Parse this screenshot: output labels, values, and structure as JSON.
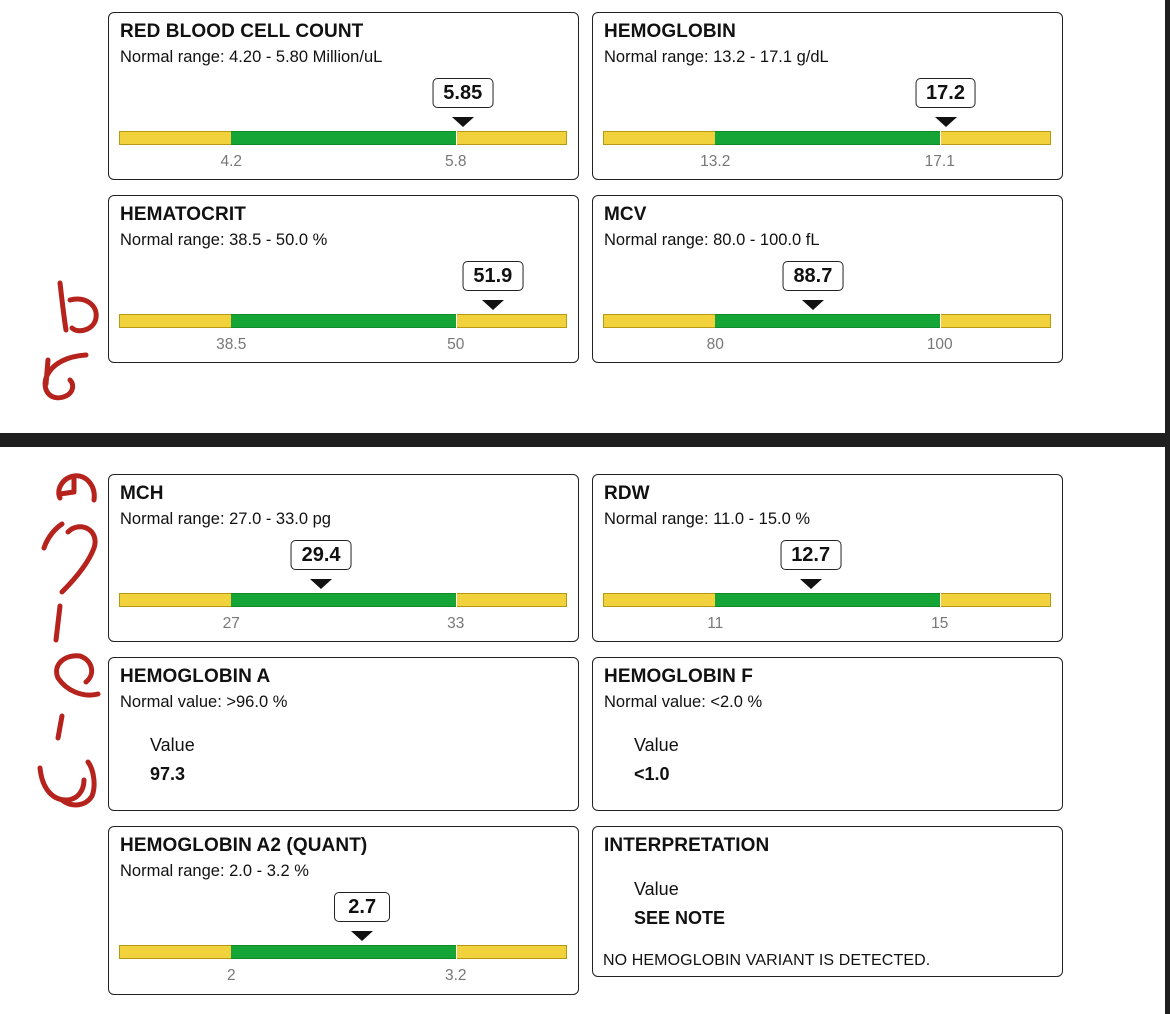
{
  "colors": {
    "low": "#f2d23c",
    "normal": "#15a537",
    "border": "#222222",
    "handwriting": "#b5231c"
  },
  "icons": {
    "pointer": "triangle-down-icon"
  },
  "handwritten_notes": [
    "25",
    "3-6-25"
  ],
  "top_page": {
    "cards": [
      {
        "title": "RED BLOOD CELL COUNT",
        "range": "Normal range: 4.20 - 5.80 Million/uL",
        "value": "5.85",
        "value_num": 5.85,
        "low": 4.2,
        "high": 5.8,
        "tick_low": "4.2",
        "tick_high": "5.8"
      },
      {
        "title": "HEMOGLOBIN",
        "range": "Normal range: 13.2 - 17.1 g/dL",
        "value": "17.2",
        "value_num": 17.2,
        "low": 13.2,
        "high": 17.1,
        "tick_low": "13.2",
        "tick_high": "17.1"
      },
      {
        "title": "HEMATOCRIT",
        "range": "Normal range: 38.5 - 50.0 %",
        "value": "51.9",
        "value_num": 51.9,
        "low": 38.5,
        "high": 50.0,
        "tick_low": "38.5",
        "tick_high": "50"
      },
      {
        "title": "MCV",
        "range": "Normal range: 80.0 - 100.0 fL",
        "value": "88.7",
        "value_num": 88.7,
        "low": 80.0,
        "high": 100.0,
        "tick_low": "80",
        "tick_high": "100"
      }
    ]
  },
  "bottom_page": {
    "cards": [
      {
        "title": "MCH",
        "range": "Normal range: 27.0 - 33.0 pg",
        "value": "29.4",
        "value_num": 29.4,
        "low": 27.0,
        "high": 33.0,
        "tick_low": "27",
        "tick_high": "33"
      },
      {
        "title": "RDW",
        "range": "Normal range: 11.0 - 15.0 %",
        "value": "12.7",
        "value_num": 12.7,
        "low": 11.0,
        "high": 15.0,
        "tick_low": "11",
        "tick_high": "15"
      },
      {
        "title": "HEMOGLOBIN A",
        "range": "Normal value: >96.0 %",
        "value_label": "Value",
        "value": "97.3"
      },
      {
        "title": "HEMOGLOBIN F",
        "range": "Normal value: <2.0 %",
        "value_label": "Value",
        "value": "<1.0"
      },
      {
        "title": "HEMOGLOBIN A2 (QUANT)",
        "range": "Normal range: 2.0 - 3.2 %",
        "value": "2.7",
        "value_num": 2.7,
        "low": 2.0,
        "high": 3.2,
        "tick_low": "2",
        "tick_high": "3.2"
      },
      {
        "title": "INTERPRETATION",
        "value_label": "Value",
        "value": "SEE NOTE",
        "note": "NO HEMOGLOBIN VARIANT IS DETECTED."
      }
    ]
  }
}
